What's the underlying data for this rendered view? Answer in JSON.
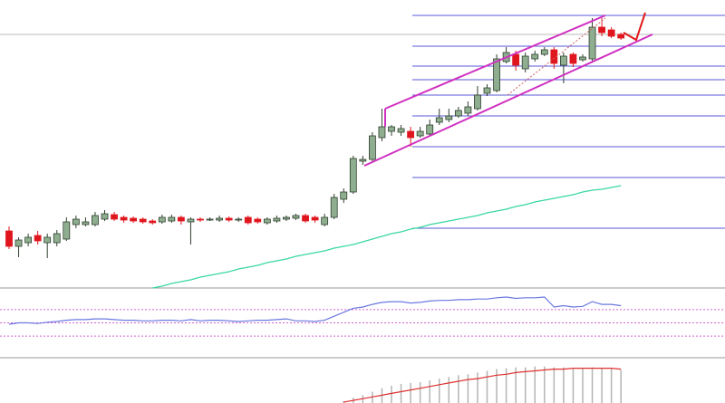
{
  "chart_data": [
    {
      "type": "candlestick",
      "open": [
        63,
        46,
        50,
        58,
        50,
        50,
        54,
        70,
        70,
        70,
        76,
        81,
        78,
        77,
        76,
        74,
        73,
        74,
        78,
        73,
        76,
        76,
        75,
        77,
        76,
        78,
        76,
        72,
        74,
        76,
        77,
        80,
        78,
        70,
        78,
        98,
        106,
        140,
        142,
        166,
        173,
        172,
        173,
        168,
        170,
        183,
        186,
        190,
        193,
        198,
        215,
        218,
        250,
        258,
        242,
        253,
        258,
        263,
        246,
        258,
        252,
        253,
        288,
        285,
        280
      ],
      "high": [
        68,
        56,
        60,
        63,
        60,
        64,
        78,
        80,
        78,
        84,
        86,
        84,
        80,
        79,
        78,
        76,
        81,
        81,
        80,
        78,
        78,
        78,
        80,
        79,
        78,
        80,
        78,
        78,
        80,
        80,
        82,
        82,
        80,
        82,
        104,
        110,
        146,
        146,
        172,
        198,
        180,
        180,
        178,
        178,
        186,
        198,
        198,
        200,
        206,
        223,
        225,
        258,
        266,
        262,
        260,
        262,
        266,
        266,
        260,
        260,
        258,
        298,
        298,
        288,
        282
      ],
      "low": [
        43,
        34,
        46,
        48,
        33,
        46,
        52,
        66,
        68,
        68,
        74,
        74,
        72,
        72,
        71,
        70,
        71,
        72,
        70,
        48,
        73,
        74,
        73,
        73,
        73,
        70,
        71,
        70,
        72,
        74,
        75,
        72,
        72,
        68,
        76,
        94,
        104,
        136,
        138,
        162,
        168,
        168,
        156,
        166,
        168,
        180,
        183,
        188,
        190,
        196,
        212,
        216,
        248,
        240,
        238,
        250,
        256,
        242,
        226,
        244,
        250,
        250,
        278,
        276,
        274
      ],
      "close": [
        46,
        53,
        56,
        52,
        56,
        60,
        73,
        76,
        73,
        80,
        82,
        76,
        75,
        74,
        73,
        72,
        78,
        78,
        74,
        76,
        75,
        76,
        77,
        75,
        76,
        72,
        73,
        76,
        77,
        78,
        80,
        74,
        75,
        78,
        100,
        106,
        143,
        142,
        168,
        178,
        178,
        176,
        166,
        173,
        180,
        188,
        190,
        196,
        200,
        213,
        221,
        253,
        260,
        246,
        256,
        258,
        263,
        248,
        256,
        248,
        255,
        288,
        282,
        278,
        276
      ],
      "up_color": "#8fae8f",
      "down_color": "#e0161e",
      "series": [
        {
          "color": "#38d8a0",
          "values": [
            null,
            null,
            null,
            null,
            null,
            null,
            null,
            null,
            null,
            null,
            null,
            null,
            null,
            null,
            null,
            0,
            2,
            5,
            7,
            9,
            12,
            14,
            16,
            18,
            21,
            23,
            25,
            28,
            30,
            32,
            35,
            37,
            39,
            41,
            44,
            46,
            48,
            51,
            54,
            57,
            60,
            62,
            65,
            67,
            70,
            72,
            74,
            76,
            78,
            80,
            83,
            85,
            87,
            90,
            92,
            95,
            97,
            99,
            101,
            103,
            106,
            108,
            109,
            111,
            113
          ]
        }
      ],
      "levels": [
        301,
        267,
        245,
        230,
        213,
        190,
        156,
        122,
        66
      ],
      "level_color": "#5a5ad8",
      "reference": 280,
      "reference_color": "#b8b8b8",
      "ylim": [
        0,
        318
      ]
    },
    {
      "type": "line",
      "series": [
        {
          "color": "#6a78e0",
          "values": [
            48,
            50,
            50,
            49,
            51,
            52,
            54,
            55,
            55,
            56,
            56,
            55,
            54,
            54,
            53,
            53,
            54,
            54,
            53,
            55,
            53,
            54,
            54,
            53,
            52,
            53,
            54,
            54,
            55,
            56,
            53,
            53,
            52,
            54,
            60,
            66,
            72,
            74,
            78,
            81,
            82,
            82,
            80,
            81,
            83,
            84,
            84,
            85,
            85,
            86,
            86,
            88,
            89,
            87,
            88,
            88,
            89,
            74,
            76,
            74,
            75,
            82,
            78,
            78,
            76
          ]
        }
      ],
      "levels": [
        30,
        50,
        70
      ],
      "level_color": "#d060d0",
      "ylim": [
        0,
        100
      ]
    },
    {
      "type": "bar",
      "color": "#b4b4b4",
      "values": [
        null,
        null,
        null,
        null,
        null,
        null,
        null,
        null,
        null,
        null,
        null,
        null,
        null,
        null,
        null,
        null,
        null,
        null,
        null,
        null,
        null,
        null,
        null,
        null,
        null,
        null,
        null,
        null,
        null,
        null,
        null,
        null,
        null,
        null,
        null,
        2,
        6,
        9,
        13,
        17,
        20,
        22,
        23,
        24,
        26,
        28,
        30,
        32,
        33,
        35,
        37,
        39,
        40,
        41,
        41,
        42,
        42,
        41,
        41,
        40,
        40,
        41,
        40,
        40,
        38
      ],
      "series": [
        {
          "color": "#e03030",
          "values": [
            null,
            null,
            null,
            null,
            null,
            null,
            null,
            null,
            null,
            null,
            null,
            null,
            null,
            null,
            null,
            null,
            null,
            null,
            null,
            null,
            null,
            null,
            null,
            null,
            null,
            null,
            null,
            null,
            null,
            null,
            null,
            null,
            null,
            null,
            null,
            1,
            3,
            5,
            7,
            9,
            11,
            13,
            15,
            17,
            19,
            21,
            23,
            25,
            27,
            28,
            30,
            32,
            33,
            35,
            36,
            37,
            38,
            39,
            39,
            40,
            40,
            40,
            40,
            40,
            39
          ]
        }
      ],
      "ylim": [
        0,
        50
      ]
    }
  ]
}
